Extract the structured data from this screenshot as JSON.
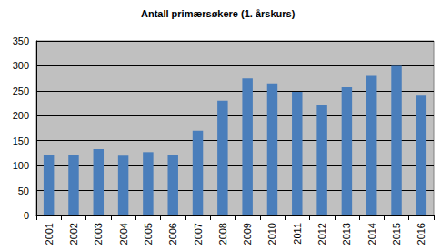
{
  "chart_data": {
    "type": "bar",
    "title": "Antall primærsøkere (1. årskurs)",
    "categories": [
      "2001",
      "2002",
      "2003",
      "2004",
      "2005",
      "2006",
      "2007",
      "2008",
      "2009",
      "2010",
      "2011",
      "2012",
      "2013",
      "2014",
      "2015",
      "2016"
    ],
    "values": [
      122,
      122,
      133,
      120,
      127,
      122,
      170,
      230,
      275,
      265,
      248,
      222,
      257,
      280,
      300,
      240
    ],
    "color": "#4a7ebb",
    "ylim": [
      0,
      350
    ],
    "yticks": [
      0,
      50,
      100,
      150,
      200,
      250,
      300,
      350
    ],
    "grid": true
  }
}
